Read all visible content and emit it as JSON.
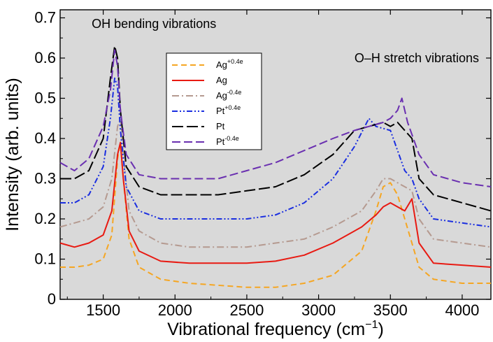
{
  "chart_data": {
    "type": "line",
    "xlabel": "Vibrational frequency (cm",
    "xlabel_sup": "−1",
    "xlabel_close": ")",
    "ylabel": "Intensity (arb. units)",
    "xlim": [
      1200,
      4200
    ],
    "ylim": [
      0,
      0.72
    ],
    "xticks": [
      1500,
      2000,
      2500,
      3000,
      3500,
      4000
    ],
    "xtick_labels": [
      "1500",
      "2000",
      "2500",
      "3000",
      "3500",
      "4000"
    ],
    "yticks": [
      0,
      0.1,
      0.2,
      0.3,
      0.4,
      0.5,
      0.6,
      0.7
    ],
    "ytick_labels": [
      "0",
      "0.1",
      "0.2",
      "0.3",
      "0.4",
      "0.5",
      "0.6",
      "0.7"
    ],
    "grid": false,
    "background": "#d9d9d9",
    "legend_position": "top-center",
    "annotations": [
      {
        "text": "OH bending vibrations",
        "x": 1420,
        "y": 0.675
      },
      {
        "text": "O–H stretch vibrations",
        "x": 3250,
        "y": 0.59
      }
    ],
    "series": [
      {
        "name": "Ag",
        "sup": "+0.4e",
        "color": "#f5a623",
        "dash": "dashed",
        "x": [
          1200,
          1300,
          1400,
          1500,
          1560,
          1600,
          1620,
          1640,
          1680,
          1750,
          1900,
          2100,
          2300,
          2500,
          2700,
          2900,
          3100,
          3300,
          3400,
          3450,
          3500,
          3550,
          3600,
          3700,
          3800,
          4000,
          4200
        ],
        "values": [
          0.08,
          0.08,
          0.085,
          0.1,
          0.16,
          0.35,
          0.39,
          0.3,
          0.15,
          0.08,
          0.05,
          0.04,
          0.035,
          0.03,
          0.03,
          0.04,
          0.06,
          0.12,
          0.22,
          0.28,
          0.29,
          0.26,
          0.2,
          0.08,
          0.05,
          0.04,
          0.04
        ]
      },
      {
        "name": "Ag",
        "sup": "",
        "color": "#e81a12",
        "dash": "solid",
        "x": [
          1200,
          1300,
          1400,
          1500,
          1560,
          1600,
          1620,
          1640,
          1680,
          1750,
          1900,
          2100,
          2300,
          2500,
          2700,
          2900,
          3100,
          3300,
          3400,
          3450,
          3500,
          3550,
          3600,
          3650,
          3700,
          3800,
          4000,
          4200
        ],
        "values": [
          0.14,
          0.13,
          0.14,
          0.16,
          0.22,
          0.36,
          0.39,
          0.3,
          0.17,
          0.12,
          0.095,
          0.09,
          0.09,
          0.09,
          0.095,
          0.11,
          0.14,
          0.18,
          0.21,
          0.23,
          0.24,
          0.23,
          0.22,
          0.25,
          0.14,
          0.09,
          0.085,
          0.08
        ]
      },
      {
        "name": "Ag",
        "sup": "-0.4e",
        "color": "#b59a90",
        "dash": "dashdot",
        "x": [
          1200,
          1300,
          1400,
          1500,
          1560,
          1600,
          1620,
          1640,
          1680,
          1750,
          1900,
          2100,
          2300,
          2500,
          2700,
          2900,
          3100,
          3300,
          3400,
          3450,
          3500,
          3550,
          3600,
          3650,
          3700,
          3800,
          4000,
          4200
        ],
        "values": [
          0.18,
          0.19,
          0.2,
          0.23,
          0.3,
          0.43,
          0.45,
          0.36,
          0.22,
          0.17,
          0.14,
          0.13,
          0.13,
          0.13,
          0.14,
          0.15,
          0.18,
          0.22,
          0.27,
          0.3,
          0.3,
          0.29,
          0.28,
          0.27,
          0.2,
          0.15,
          0.14,
          0.13
        ]
      },
      {
        "name": "Pt",
        "sup": "+0.4e",
        "color": "#1a2ee0",
        "dash": "dashdotdot",
        "x": [
          1200,
          1300,
          1400,
          1500,
          1550,
          1580,
          1600,
          1620,
          1660,
          1750,
          1900,
          2100,
          2300,
          2500,
          2700,
          2900,
          3100,
          3250,
          3350,
          3400,
          3500,
          3550,
          3600,
          3650,
          3700,
          3800,
          4000,
          4200
        ],
        "values": [
          0.24,
          0.24,
          0.26,
          0.33,
          0.45,
          0.55,
          0.53,
          0.42,
          0.28,
          0.22,
          0.2,
          0.2,
          0.2,
          0.2,
          0.21,
          0.24,
          0.3,
          0.38,
          0.45,
          0.43,
          0.42,
          0.37,
          0.32,
          0.3,
          0.25,
          0.2,
          0.19,
          0.18
        ]
      },
      {
        "name": "Pt",
        "sup": "",
        "color": "#000000",
        "dash": "longdash",
        "x": [
          1200,
          1300,
          1400,
          1500,
          1550,
          1580,
          1600,
          1620,
          1660,
          1750,
          1900,
          2100,
          2300,
          2500,
          2700,
          2900,
          3100,
          3250,
          3350,
          3450,
          3500,
          3550,
          3600,
          3650,
          3700,
          3800,
          4000,
          4200
        ],
        "values": [
          0.3,
          0.3,
          0.32,
          0.4,
          0.55,
          0.63,
          0.6,
          0.47,
          0.33,
          0.28,
          0.26,
          0.26,
          0.26,
          0.27,
          0.28,
          0.31,
          0.36,
          0.42,
          0.43,
          0.44,
          0.43,
          0.44,
          0.42,
          0.4,
          0.3,
          0.26,
          0.24,
          0.22
        ]
      },
      {
        "name": "Pt",
        "sup": "-0.4e",
        "color": "#6a2fb0",
        "dash": "dashed2",
        "x": [
          1200,
          1300,
          1400,
          1500,
          1550,
          1580,
          1600,
          1620,
          1660,
          1750,
          1900,
          2100,
          2300,
          2500,
          2700,
          2900,
          3100,
          3250,
          3350,
          3450,
          3500,
          3550,
          3580,
          3620,
          3700,
          3800,
          4000,
          4200
        ],
        "values": [
          0.34,
          0.32,
          0.35,
          0.43,
          0.52,
          0.62,
          0.58,
          0.47,
          0.36,
          0.31,
          0.3,
          0.3,
          0.3,
          0.32,
          0.34,
          0.37,
          0.4,
          0.42,
          0.43,
          0.44,
          0.45,
          0.47,
          0.5,
          0.44,
          0.36,
          0.31,
          0.29,
          0.28
        ]
      }
    ]
  }
}
